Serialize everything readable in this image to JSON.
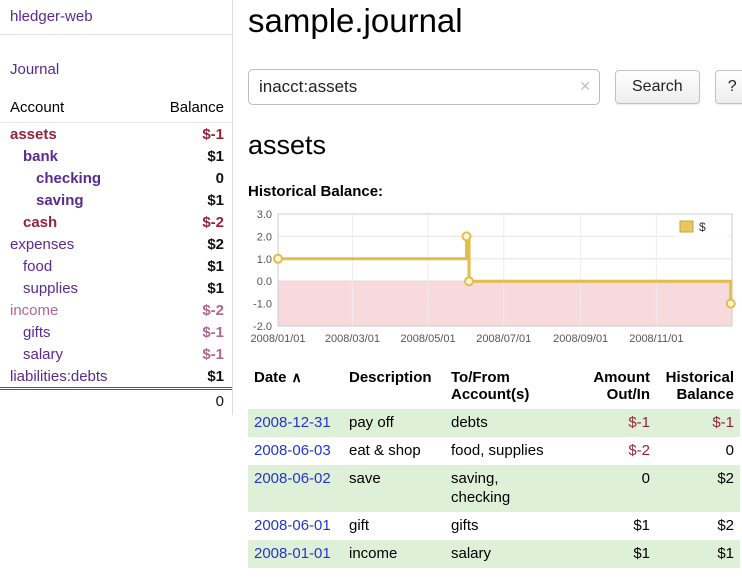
{
  "colors": {
    "purple": "#5b2a91",
    "link_blue": "#2336cc",
    "negative": "#98243a",
    "negative_soft": "#b5678a",
    "row_green": "#dff0d8",
    "gold": "#e2bd4a",
    "gold_fill": "#fdf6dd",
    "legend_square": "#e9c75f",
    "legend_square_border": "#caa43a",
    "pink_region": "#f9dadc",
    "pink_region_edge": "#e3a8a8"
  },
  "app": {
    "title": "hledger-web"
  },
  "nav": {
    "journal": "Journal"
  },
  "sidebar": {
    "header": {
      "account": "Account",
      "balance": "Balance"
    },
    "accounts": [
      {
        "name": "assets",
        "balance": "$-1",
        "indent": 0,
        "bold": true,
        "name_class": "maroon",
        "bal_class": "maroon"
      },
      {
        "name": "bank",
        "balance": "$1",
        "indent": 1,
        "bold": true,
        "name_class": "purple",
        "bal_class": "black"
      },
      {
        "name": "checking",
        "balance": "0",
        "indent": 2,
        "bold": true,
        "name_class": "purple",
        "bal_class": "black"
      },
      {
        "name": "saving",
        "balance": "$1",
        "indent": 2,
        "bold": true,
        "name_class": "purple",
        "bal_class": "black"
      },
      {
        "name": "cash",
        "balance": "$-2",
        "indent": 1,
        "bold": true,
        "name_class": "maroon",
        "bal_class": "maroon"
      },
      {
        "name": "expenses",
        "balance": "$2",
        "indent": 0,
        "bold": false,
        "name_class": "purple",
        "bal_class": "black"
      },
      {
        "name": "food",
        "balance": "$1",
        "indent": 1,
        "bold": false,
        "name_class": "purple",
        "bal_class": "black"
      },
      {
        "name": "supplies",
        "balance": "$1",
        "indent": 1,
        "bold": false,
        "name_class": "purple",
        "bal_class": "black"
      },
      {
        "name": "income",
        "balance": "$-2",
        "indent": 0,
        "bold": false,
        "name_class": "rose",
        "bal_class": "rose"
      },
      {
        "name": "gifts",
        "balance": "$-1",
        "indent": 1,
        "bold": false,
        "name_class": "purple",
        "bal_class": "rose"
      },
      {
        "name": "salary",
        "balance": "$-1",
        "indent": 1,
        "bold": false,
        "name_class": "purple",
        "bal_class": "rose"
      },
      {
        "name": "liabilities:debts",
        "balance": "$1",
        "indent": 0,
        "bold": false,
        "name_class": "purple",
        "bal_class": "black"
      }
    ],
    "total": "0"
  },
  "main": {
    "title": "sample.journal",
    "search": {
      "value": "inacct:assets",
      "clear": "✕",
      "button": "Search",
      "help": "?"
    },
    "account_heading": "assets",
    "chart_title": "Historical Balance:"
  },
  "chart_data": {
    "type": "line",
    "step": true,
    "title": "Historical Balance:",
    "series": [
      {
        "name": "$",
        "points": [
          {
            "date": "2008-01-01",
            "value": 1
          },
          {
            "date": "2008-06-01",
            "value": 2
          },
          {
            "date": "2008-06-03",
            "value": 0
          },
          {
            "date": "2008-12-31",
            "value": -1
          }
        ]
      }
    ],
    "x_ticks": [
      "2008/01/01",
      "2008/03/01",
      "2008/05/01",
      "2008/07/01",
      "2008/09/01",
      "2008/11/01"
    ],
    "y_ticks": [
      3.0,
      2.0,
      1.0,
      0.0,
      -1.0,
      -2.0
    ],
    "ylim": [
      -2,
      3
    ],
    "xlim": [
      "2008-01-01",
      "2009-01-01"
    ],
    "legend_position": "top-right",
    "grid": true,
    "negative_region": true
  },
  "register": {
    "columns": {
      "date": "Date",
      "description": "Description",
      "accounts": "To/From\nAccount(s)",
      "amount": "Amount\nOut/In",
      "balance": "Historical\nBalance"
    },
    "sort_icon": "∧",
    "rows": [
      {
        "date": "2008-12-31",
        "description": "pay off",
        "accounts": "debts",
        "amount": "$-1",
        "amount_class": "neg",
        "balance": "$-1",
        "balance_class": "neg",
        "shaded": true
      },
      {
        "date": "2008-06-03",
        "description": "eat & shop",
        "accounts": "food, supplies",
        "amount": "$-2",
        "amount_class": "neg",
        "balance": "0",
        "balance_class": "pos",
        "shaded": false
      },
      {
        "date": "2008-06-02",
        "description": "save",
        "accounts": "saving,\nchecking",
        "amount": "0",
        "amount_class": "pos",
        "balance": "$2",
        "balance_class": "pos",
        "shaded": true
      },
      {
        "date": "2008-06-01",
        "description": "gift",
        "accounts": "gifts",
        "amount": "$1",
        "amount_class": "pos",
        "balance": "$2",
        "balance_class": "pos",
        "shaded": false
      },
      {
        "date": "2008-01-01",
        "description": "income",
        "accounts": "salary",
        "amount": "$1",
        "amount_class": "pos",
        "balance": "$1",
        "balance_class": "pos",
        "shaded": true
      }
    ]
  }
}
